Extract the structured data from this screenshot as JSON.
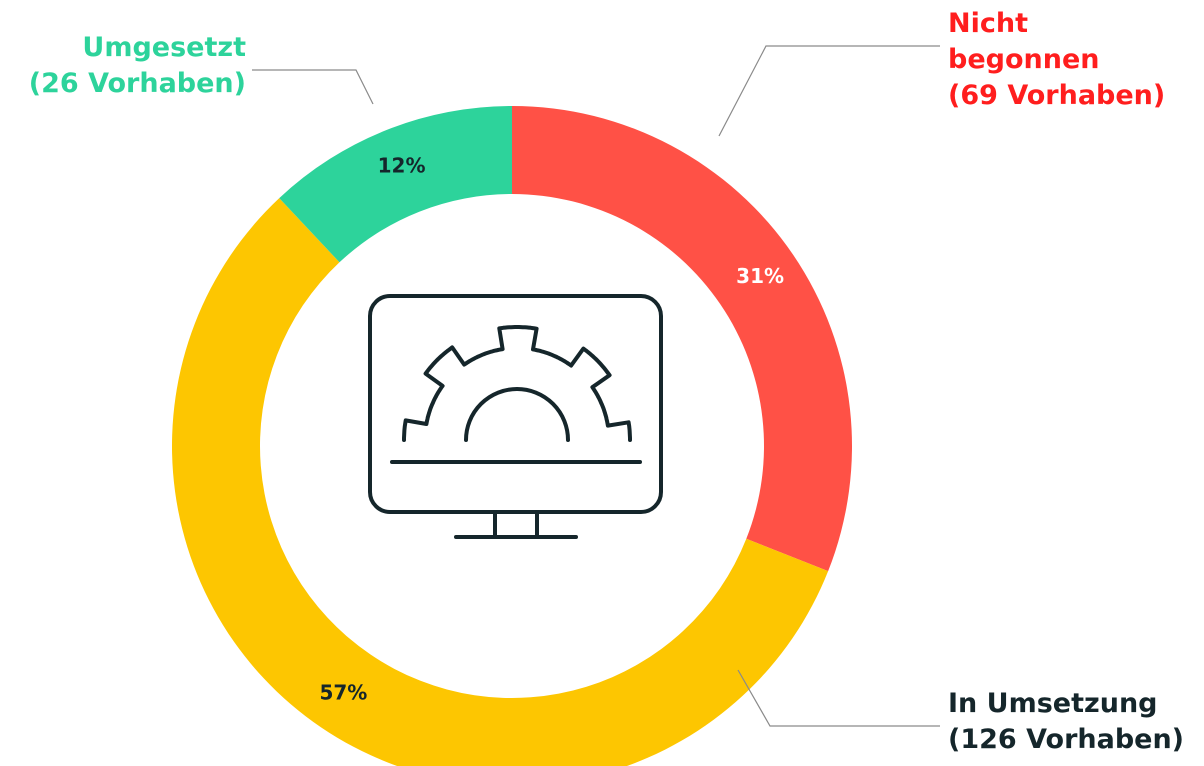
{
  "chart_data": {
    "type": "donut",
    "categories": [
      "Nicht begonnen",
      "In Umsetzung",
      "Umgesetzt"
    ],
    "category_notes": [
      "(69 Vorhaben)",
      "(126 Vorhaben)",
      "(26 Vorhaben)"
    ],
    "values": [
      31,
      57,
      12
    ],
    "value_labels": [
      "31%",
      "57%",
      "12%"
    ],
    "colors": [
      "#ff5146",
      "#fdc601",
      "#2dd39b"
    ],
    "label_colors": [
      "#ff1e1e",
      "#15262b",
      "#2dd39b"
    ],
    "value_label_colors": [
      "#ffffff",
      "#15262b",
      "#15262b"
    ]
  }
}
